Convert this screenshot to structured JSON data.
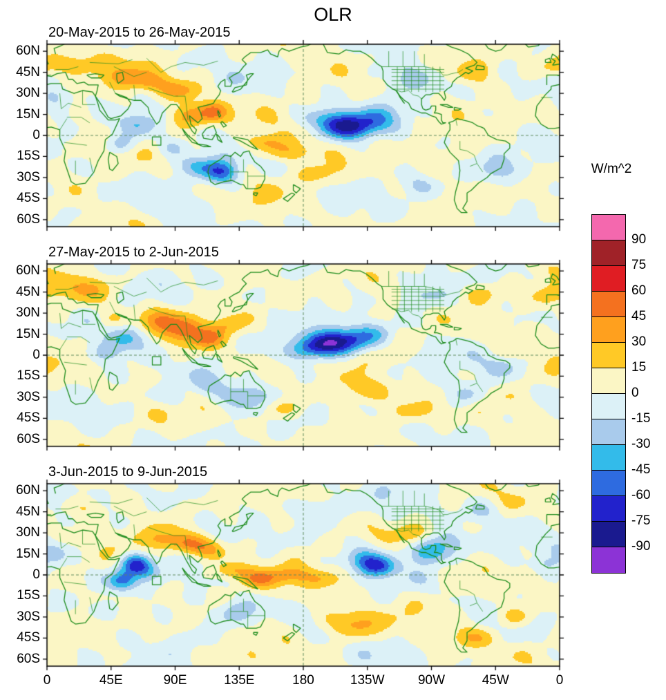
{
  "chart_data": {
    "type": "heatmap",
    "subtype": "filled-contour anomaly world maps, 3 stacked panels sharing axes and one colorbar",
    "title": "OLR",
    "units": "W/m^2",
    "projection": "equirectangular",
    "lon_range_deg_east": [
      0,
      360
    ],
    "lat_range_deg": [
      -65,
      65
    ],
    "x_tick_labels": [
      "0",
      "45E",
      "90E",
      "135E",
      "180",
      "135W",
      "90W",
      "45W",
      "0"
    ],
    "x_tick_lon_deg_east": [
      0,
      45,
      90,
      135,
      180,
      225,
      270,
      315,
      360
    ],
    "y_tick_labels": [
      "60N",
      "45N",
      "30N",
      "15N",
      "0",
      "15S",
      "30S",
      "45S",
      "60S"
    ],
    "y_tick_lat_deg": [
      60,
      45,
      30,
      15,
      0,
      -15,
      -30,
      -45,
      -60
    ],
    "contour_levels_w_m2": [
      -90,
      -75,
      -60,
      -45,
      -30,
      -15,
      0,
      15,
      30,
      45,
      60,
      75,
      90
    ],
    "colorbar_labels_top_to_bottom": [
      "90",
      "75",
      "60",
      "45",
      "30",
      "15",
      "0",
      "-15",
      "-30",
      "-45",
      "-60",
      "-75",
      "-90"
    ],
    "palette_low_to_high": [
      "#8C33D6",
      "#1A1A8F",
      "#2222CC",
      "#2E6BE0",
      "#33BBEA",
      "#A9CBEC",
      "#DCF1F7",
      "#FBF6C5",
      "#FFC926",
      "#FFA01E",
      "#F4711F",
      "#E01D23",
      "#A02228",
      "#F468AE"
    ],
    "coastline_color": "#1D8C1D",
    "gridlines": {
      "equator_dashed": true,
      "dateline_dashed": true
    },
    "roi_box": {
      "lon_deg_east": [
        74,
        80
      ],
      "lat_deg": [
        -7,
        -1
      ]
    },
    "anomaly_fields": [
      "lon_deg_east",
      "lat_deg",
      "peak_W_m2",
      "sigma_lon_deg",
      "sigma_lat_deg"
    ],
    "anomalies_note": "Anomaly centers and intensities estimated visually from the figure; rendered as Gaussian blobs over a low-amplitude mottled background field.",
    "panels": [
      {
        "subtitle": "20-May-2015 to 26-May-2015",
        "anomalies": [
          [
            20,
            52,
            30,
            14,
            6
          ],
          [
            52,
            42,
            22,
            10,
            5
          ],
          [
            4,
            27,
            -20,
            7,
            5
          ],
          [
            68,
            38,
            24,
            12,
            5
          ],
          [
            95,
            32,
            26,
            12,
            5
          ],
          [
            100,
            14,
            45,
            10,
            6
          ],
          [
            117,
            17,
            36,
            7,
            5
          ],
          [
            62,
            8,
            -32,
            9,
            6
          ],
          [
            52,
            -6,
            -25,
            8,
            5
          ],
          [
            88,
            -8,
            -20,
            8,
            5
          ],
          [
            122,
            -26,
            -62,
            9,
            6
          ],
          [
            105,
            -22,
            -28,
            8,
            5
          ],
          [
            170,
            -12,
            26,
            14,
            5
          ],
          [
            192,
            -28,
            22,
            12,
            6
          ],
          [
            150,
            -5,
            28,
            10,
            4
          ],
          [
            212,
            6,
            -68,
            13,
            6
          ],
          [
            196,
            12,
            -30,
            12,
            6
          ],
          [
            232,
            12,
            -28,
            10,
            6
          ],
          [
            252,
            40,
            -28,
            12,
            7
          ],
          [
            300,
            46,
            25,
            10,
            6
          ],
          [
            355,
            48,
            22,
            8,
            5
          ],
          [
            315,
            -25,
            -20,
            10,
            6
          ],
          [
            260,
            -35,
            -18,
            10,
            6
          ]
        ]
      },
      {
        "subtitle": "27-May-2015 to 2-Jun-2015",
        "anomalies": [
          [
            25,
            48,
            20,
            12,
            6
          ],
          [
            45,
            25,
            18,
            8,
            5
          ],
          [
            80,
            25,
            36,
            10,
            6
          ],
          [
            97,
            18,
            42,
            9,
            6
          ],
          [
            113,
            12,
            34,
            8,
            5
          ],
          [
            128,
            22,
            24,
            8,
            5
          ],
          [
            55,
            12,
            -30,
            9,
            6
          ],
          [
            42,
            2,
            -22,
            8,
            5
          ],
          [
            137,
            -30,
            -32,
            11,
            6
          ],
          [
            112,
            -20,
            -25,
            9,
            6
          ],
          [
            165,
            -38,
            22,
            10,
            5
          ],
          [
            196,
            8,
            -74,
            12,
            6
          ],
          [
            213,
            11,
            -42,
            11,
            6
          ],
          [
            228,
            15,
            -28,
            11,
            6
          ],
          [
            183,
            3,
            -28,
            10,
            5
          ],
          [
            222,
            -25,
            26,
            13,
            6
          ],
          [
            258,
            -40,
            20,
            12,
            6
          ],
          [
            305,
            44,
            28,
            11,
            6
          ],
          [
            352,
            42,
            20,
            8,
            5
          ],
          [
            295,
            -28,
            -22,
            9,
            6
          ],
          [
            320,
            -8,
            -18,
            8,
            5
          ],
          [
            262,
            42,
            -24,
            10,
            6
          ],
          [
            90,
            -30,
            -20,
            10,
            5
          ],
          [
            2,
            10,
            16,
            7,
            4
          ]
        ]
      },
      {
        "subtitle": "3-Jun-2015 to 9-Jun-2015",
        "anomalies": [
          [
            62,
            8,
            -56,
            7,
            5
          ],
          [
            53,
            -4,
            -50,
            7,
            5
          ],
          [
            70,
            3,
            -28,
            8,
            5
          ],
          [
            82,
            25,
            30,
            9,
            5
          ],
          [
            100,
            22,
            38,
            9,
            5
          ],
          [
            115,
            18,
            30,
            8,
            5
          ],
          [
            130,
            3,
            28,
            9,
            4
          ],
          [
            148,
            -3,
            30,
            10,
            4
          ],
          [
            170,
            0,
            22,
            10,
            4
          ],
          [
            195,
            -3,
            24,
            12,
            5
          ],
          [
            213,
            -35,
            34,
            13,
            7
          ],
          [
            232,
            6,
            -52,
            9,
            5
          ],
          [
            222,
            12,
            -28,
            9,
            5
          ],
          [
            268,
            16,
            -56,
            9,
            6
          ],
          [
            282,
            24,
            -26,
            10,
            6
          ],
          [
            190,
            48,
            -28,
            12,
            6
          ],
          [
            256,
            30,
            22,
            9,
            5
          ],
          [
            305,
            45,
            -24,
            10,
            6
          ],
          [
            330,
            -30,
            26,
            11,
            6
          ],
          [
            300,
            -45,
            22,
            12,
            5
          ],
          [
            25,
            48,
            18,
            10,
            5
          ],
          [
            5,
            16,
            -22,
            7,
            5
          ],
          [
            350,
            8,
            -18,
            7,
            4
          ],
          [
            40,
            -25,
            -20,
            9,
            5
          ],
          [
            133,
            -26,
            -28,
            9,
            6
          ]
        ]
      }
    ]
  }
}
